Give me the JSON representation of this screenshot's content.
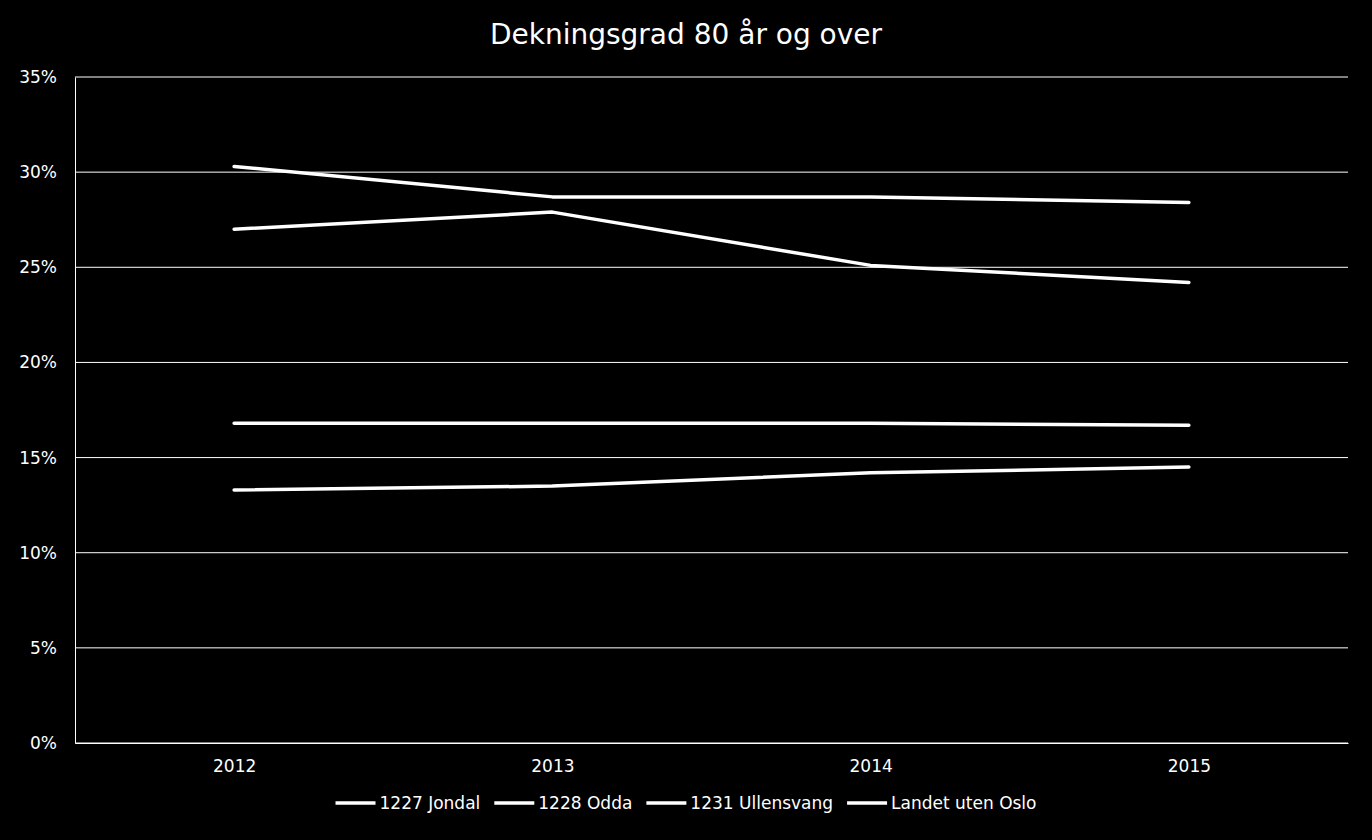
{
  "chart_data": {
    "type": "line",
    "title": "Dekningsgrad 80 år og over",
    "categories": [
      "2012",
      "2013",
      "2014",
      "2015"
    ],
    "series": [
      {
        "name": "1227 Jondal",
        "color": "#ffffff",
        "values": [
          30.3,
          28.7,
          28.7,
          28.4
        ]
      },
      {
        "name": "1228 Odda",
        "color": "#ffffff",
        "values": [
          27.0,
          27.9,
          25.1,
          24.2
        ]
      },
      {
        "name": "1231 Ullensvang",
        "color": "#ffffff",
        "values": [
          16.8,
          16.8,
          16.8,
          16.7
        ]
      },
      {
        "name": "Landet uten Oslo",
        "color": "#ffffff",
        "values": [
          13.3,
          13.5,
          14.2,
          14.5
        ]
      }
    ],
    "ylim": [
      0,
      35
    ],
    "yticks": [
      {
        "value": 0,
        "label": "0%"
      },
      {
        "value": 5,
        "label": "5%"
      },
      {
        "value": 10,
        "label": "10%"
      },
      {
        "value": 15,
        "label": "15%"
      },
      {
        "value": 20,
        "label": "20%"
      },
      {
        "value": 25,
        "label": "25%"
      },
      {
        "value": 30,
        "label": "30%"
      },
      {
        "value": 35,
        "label": "35%"
      }
    ],
    "grid": true,
    "legend": "bottom"
  }
}
